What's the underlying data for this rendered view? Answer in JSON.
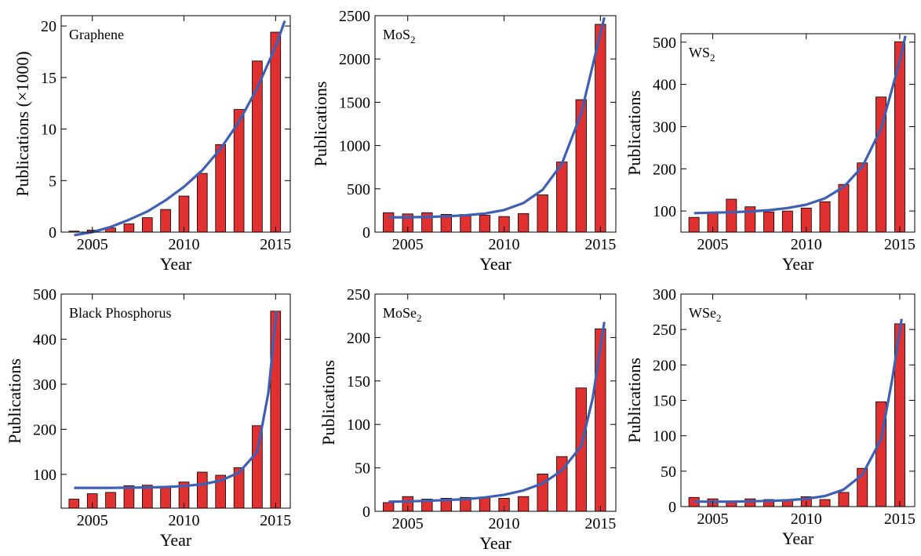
{
  "chart_data": [
    {
      "type": "bar",
      "title": "Graphene",
      "xlabel": "Year",
      "ylabel": "Publications (×1000)",
      "x": [
        2004,
        2005,
        2006,
        2007,
        2008,
        2009,
        2010,
        2011,
        2012,
        2013,
        2014,
        2015
      ],
      "values": [
        0.1,
        0.2,
        0.4,
        0.8,
        1.4,
        2.2,
        3.5,
        5.7,
        8.5,
        11.9,
        16.6,
        19.4
      ],
      "fit": [
        -0.3,
        0.0,
        0.5,
        1.2,
        2.0,
        3.1,
        4.4,
        6.0,
        8.1,
        10.7,
        14.0,
        18.0,
        20.5
      ],
      "fit_x": [
        2004,
        2005,
        2006,
        2007,
        2008,
        2009,
        2010,
        2011,
        2012,
        2013,
        2014,
        2015,
        2015.5
      ],
      "ylim": [
        0,
        21
      ],
      "yticks": [
        0,
        5,
        10,
        15,
        20
      ],
      "xticks": [
        2005,
        2010,
        2015
      ],
      "xlim": [
        2003.3,
        2015.8
      ],
      "bar_color": "#e03030",
      "fit_color": "#3f5fb5"
    },
    {
      "type": "bar",
      "title": "MoS",
      "title_sub": "2",
      "xlabel": "Year",
      "ylabel": "Publications",
      "x": [
        2004,
        2005,
        2006,
        2007,
        2008,
        2009,
        2010,
        2011,
        2012,
        2013,
        2014,
        2015
      ],
      "values": [
        225,
        210,
        225,
        205,
        205,
        195,
        180,
        215,
        430,
        810,
        1530,
        2400
      ],
      "fit": [
        170,
        172,
        176,
        183,
        195,
        215,
        255,
        335,
        490,
        790,
        1370,
        2300,
        2480
      ],
      "fit_x": [
        2004,
        2005,
        2006,
        2007,
        2008,
        2009,
        2010,
        2011,
        2012,
        2013,
        2014,
        2015,
        2015.2
      ],
      "ylim": [
        0,
        2500
      ],
      "yticks": [
        0,
        500,
        1000,
        1500,
        2000,
        2500
      ],
      "xticks": [
        2005,
        2010,
        2015
      ],
      "xlim": [
        2003.3,
        2015.8
      ],
      "bar_color": "#e03030",
      "fit_color": "#3f5fb5"
    },
    {
      "type": "bar",
      "title": "WS",
      "title_sub": "2",
      "xlabel": "Year",
      "ylabel": "Publications",
      "x": [
        2004,
        2005,
        2006,
        2007,
        2008,
        2009,
        2010,
        2011,
        2012,
        2013,
        2014,
        2015
      ],
      "values": [
        85,
        95,
        128,
        110,
        98,
        100,
        107,
        122,
        163,
        214,
        370,
        501
      ],
      "fit": [
        95,
        96,
        97,
        99,
        102,
        107,
        115,
        130,
        157,
        205,
        295,
        455,
        515
      ],
      "fit_x": [
        2004,
        2005,
        2006,
        2007,
        2008,
        2009,
        2010,
        2011,
        2012,
        2013,
        2014,
        2015,
        2015.3
      ],
      "ylim": [
        50,
        520
      ],
      "yticks": [
        100,
        200,
        300,
        400,
        500
      ],
      "xticks": [
        2005,
        2010,
        2015
      ],
      "xlim": [
        2003.3,
        2015.8
      ],
      "bar_color": "#e03030",
      "fit_color": "#3f5fb5"
    },
    {
      "type": "bar",
      "title": "Black Phosphorus",
      "xlabel": "Year",
      "ylabel": "Publications",
      "x": [
        2004,
        2005,
        2006,
        2007,
        2008,
        2009,
        2010,
        2011,
        2012,
        2013,
        2014,
        2015
      ],
      "values": [
        45,
        57,
        60,
        75,
        76,
        72,
        83,
        105,
        98,
        115,
        208,
        462
      ],
      "fit": [
        70,
        70,
        70,
        70.5,
        71,
        72,
        74,
        78,
        86,
        104,
        150,
        280,
        462
      ],
      "fit_x": [
        2004,
        2005,
        2006,
        2007,
        2008,
        2009,
        2010,
        2011,
        2012,
        2013,
        2014,
        2014.6,
        2015.05
      ],
      "ylim": [
        25,
        500
      ],
      "yticks": [
        100,
        200,
        300,
        400,
        500
      ],
      "xticks": [
        2005,
        2010,
        2015
      ],
      "xlim": [
        2003.3,
        2015.8
      ],
      "bar_color": "#e03030",
      "fit_color": "#3f5fb5"
    },
    {
      "type": "bar",
      "title": "MoSe",
      "title_sub": "2",
      "xlabel": "Year",
      "ylabel": "Publications",
      "x": [
        2004,
        2005,
        2006,
        2007,
        2008,
        2009,
        2010,
        2011,
        2012,
        2013,
        2014,
        2015
      ],
      "values": [
        10,
        17,
        14,
        15,
        16,
        16,
        15,
        17,
        43,
        63,
        142,
        210
      ],
      "fit": [
        11,
        11.5,
        12,
        13,
        14,
        16,
        19,
        24,
        32,
        47,
        75,
        130,
        218
      ],
      "fit_x": [
        2004,
        2005,
        2006,
        2007,
        2008,
        2009,
        2010,
        2011,
        2012,
        2013,
        2014,
        2014.6,
        2015.2
      ],
      "ylim": [
        0,
        250
      ],
      "yticks": [
        0,
        50,
        100,
        150,
        200,
        250
      ],
      "xticks": [
        2005,
        2010,
        2015
      ],
      "xlim": [
        2003.3,
        2015.8
      ],
      "bar_color": "#e03030",
      "fit_color": "#3f5fb5"
    },
    {
      "type": "bar",
      "title": "WSe",
      "title_sub": "2",
      "xlabel": "Year",
      "ylabel": "Publications",
      "x": [
        2004,
        2005,
        2006,
        2007,
        2008,
        2009,
        2010,
        2011,
        2012,
        2013,
        2014,
        2015
      ],
      "values": [
        13,
        11,
        8,
        11,
        10,
        10,
        14,
        10,
        20,
        54,
        148,
        258
      ],
      "fit": [
        7,
        7,
        7,
        7.5,
        8,
        9,
        11,
        15,
        24,
        45,
        95,
        180,
        265
      ],
      "fit_x": [
        2004,
        2005,
        2006,
        2007,
        2008,
        2009,
        2010,
        2011,
        2012,
        2013,
        2014,
        2014.6,
        2015.1
      ],
      "ylim": [
        0,
        300
      ],
      "yticks": [
        0,
        50,
        100,
        150,
        200,
        250,
        300
      ],
      "xticks": [
        2005,
        2010,
        2015
      ],
      "xlim": [
        2003.3,
        2015.8
      ],
      "bar_color": "#e03030",
      "fit_color": "#3f5fb5"
    }
  ]
}
